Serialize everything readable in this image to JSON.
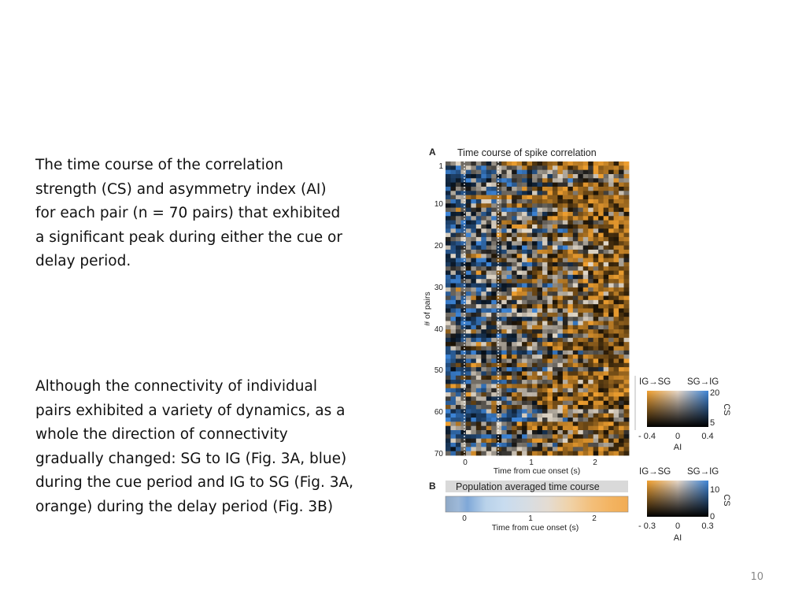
{
  "slide": {
    "paragraph_1": [
      "The time course of the correlation",
      "strength (CS) and asymmetry index (AI)",
      "for each pair (n = 70 pairs) that exhibited",
      "a significant peak during either the cue or",
      "delay period."
    ],
    "paragraph_2": [
      "Although the connectivity of individual",
      "pairs exhibited a variety of dynamics, as a",
      "whole the direction of connectivity",
      "gradually changed: SG to IG (Fig. 3A, blue)",
      "during the cue period and IG to SG (Fig. 3A,",
      "orange) during the delay period (Fig. 3B)"
    ],
    "page_number": "10"
  },
  "figure": {
    "panel_a": {
      "letter": "A",
      "title": "Time course of spike correlation",
      "ylabel": "# of pairs",
      "xlabel": "Time from cue onset (s)",
      "y_ticks": [
        "1",
        "10",
        "20",
        "30",
        "40",
        "50",
        "60",
        "70"
      ],
      "x_ticks": [
        "0",
        "1",
        "2"
      ]
    },
    "panel_b": {
      "letter": "B",
      "title": "Population averaged time course",
      "xlabel": "Time from cue onset (s)",
      "x_ticks": [
        "0",
        "1",
        "2"
      ]
    },
    "colorbar_a": {
      "left_label": "IG→SG",
      "right_label": "SG→IG",
      "cs_label": "CS",
      "cs_ticks": [
        "20",
        "5"
      ],
      "ai_ticks": [
        "- 0.4",
        "0",
        "0.4"
      ],
      "ai_label": "AI"
    },
    "colorbar_b": {
      "left_label": "IG→SG",
      "right_label": "SG→IG",
      "cs_label": "CS",
      "cs_ticks": [
        "10",
        "0"
      ],
      "ai_ticks": [
        "- 0.3",
        "0",
        "0.3"
      ],
      "ai_label": "AI"
    }
  },
  "chart_data": [
    {
      "type": "heatmap",
      "title": "Time course of spike correlation",
      "xlabel": "Time from cue onset (s)",
      "ylabel": "# of pairs",
      "rows": 70,
      "y_ticks": [
        1,
        10,
        20,
        30,
        40,
        50,
        60,
        70
      ],
      "x_ticks": [
        0,
        1,
        2
      ],
      "color_encoding": {
        "hue": "AI",
        "brightness": "CS",
        "ai_range": [
          -0.4,
          0.4
        ],
        "cs_ticks": [
          5,
          20
        ]
      },
      "colors": {
        "ig_to_sg": "#f0a030",
        "sg_to_ig": "#3d85d8",
        "low": "#101010"
      }
    },
    {
      "type": "heatmap",
      "title": "Population averaged time course",
      "xlabel": "Time from cue onset (s)",
      "rows": 1,
      "x_ticks": [
        0,
        1,
        2
      ],
      "color_encoding": {
        "hue": "AI",
        "brightness": "CS",
        "ai_range": [
          -0.3,
          0.3
        ],
        "cs_ticks": [
          0,
          10
        ]
      },
      "colors": {
        "ig_to_sg": "#f0a030",
        "sg_to_ig": "#3d85d8",
        "low": "#101010"
      }
    }
  ]
}
